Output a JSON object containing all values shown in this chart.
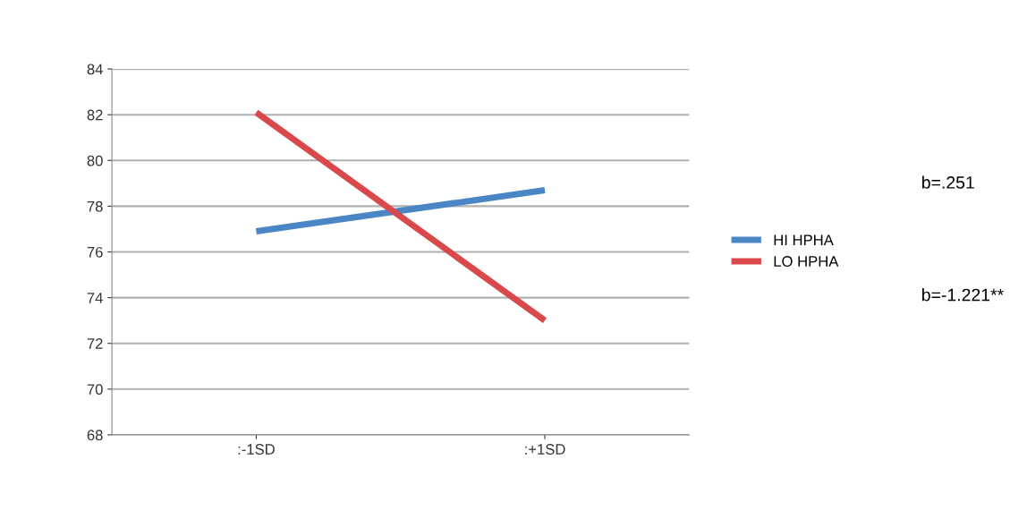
{
  "chart_data": {
    "type": "line",
    "categories": [
      ":-1SD",
      ":+1SD"
    ],
    "series": [
      {
        "name": "HI HPHA",
        "color": "#4a86c5",
        "values": [
          76.9,
          78.7
        ]
      },
      {
        "name": "LO HPHA",
        "color": "#d9484a",
        "values": [
          82.1,
          73.0
        ]
      }
    ],
    "ylim": [
      68,
      84
    ],
    "yticks": [
      68,
      70,
      72,
      74,
      76,
      78,
      80,
      82,
      84
    ],
    "grid": "y",
    "legend": "right",
    "marker": "none",
    "annotations": [
      "b=.251",
      "b=-1.221**"
    ]
  }
}
